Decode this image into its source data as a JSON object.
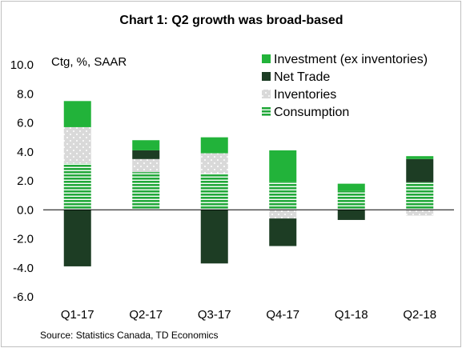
{
  "chart_data": {
    "type": "bar",
    "stacked": true,
    "title": "Chart 1: Q2 growth was broad-based",
    "units_label": "Ctg, %, SAAR",
    "source": "Source: Statistics Canada, TD Economics",
    "categories": [
      "Q1-17",
      "Q2-17",
      "Q3-17",
      "Q4-17",
      "Q1-18",
      "Q2-18"
    ],
    "ylim": [
      -6.0,
      10.0
    ],
    "yticks": [
      "10.0",
      "8.0",
      "6.0",
      "4.0",
      "2.0",
      "0.0",
      "-2.0",
      "-4.0",
      "-6.0"
    ],
    "ytick_values": [
      10,
      8,
      6,
      4,
      2,
      0,
      -2,
      -4,
      -6
    ],
    "legend_position": "top-right",
    "series": [
      {
        "name": "Consumption",
        "color": "#22a83a",
        "pattern": "horizontal-lines",
        "values": [
          3.2,
          2.6,
          2.5,
          1.9,
          1.3,
          1.9
        ]
      },
      {
        "name": "Inventories",
        "color": "#d9d9d9",
        "pattern": "dots",
        "values": [
          2.5,
          0.9,
          1.4,
          -0.6,
          0.0,
          -0.4
        ]
      },
      {
        "name": "Net Trade",
        "color": "#1d3d24",
        "pattern": "solid",
        "values": [
          -3.9,
          0.6,
          -3.7,
          -1.9,
          -0.7,
          1.6
        ]
      },
      {
        "name": "Investment (ex inventories)",
        "color": "#22b33a",
        "pattern": "solid",
        "values": [
          1.8,
          0.7,
          1.1,
          2.2,
          0.5,
          0.2
        ]
      }
    ],
    "legend_order": [
      "Investment (ex inventories)",
      "Net Trade",
      "Inventories",
      "Consumption"
    ]
  }
}
